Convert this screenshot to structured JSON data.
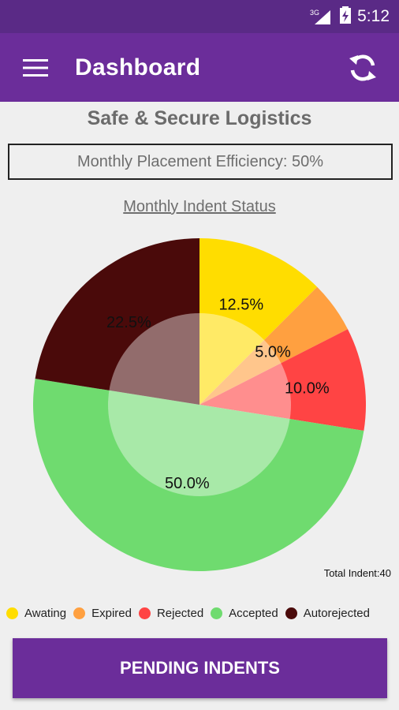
{
  "status_bar": {
    "network": "3G",
    "time": "5:12"
  },
  "app_bar": {
    "title": "Dashboard",
    "menu_icon": "hamburger-menu-icon",
    "refresh_icon": "refresh-icon"
  },
  "company_name": "Safe & Secure Logistics",
  "efficiency_text": "Monthly Placement Efficiency: 50%",
  "indent_title": "Monthly Indent Status",
  "total_indent": "Total Indent:40",
  "pending_button": "PENDING INDENTS",
  "chart_data": {
    "type": "pie",
    "title": "Monthly Indent Status",
    "slices": [
      {
        "name": "Awating",
        "value": 12.5,
        "label": "12.5%",
        "color": "#ffdd00"
      },
      {
        "name": "Expired",
        "value": 5.0,
        "label": "5.0%",
        "color": "#ffa040"
      },
      {
        "name": "Rejected",
        "value": 10.0,
        "label": "10.0%",
        "color": "#ff4444"
      },
      {
        "name": "Accepted",
        "value": 50.0,
        "label": "50.0%",
        "color": "#6fdb6f"
      },
      {
        "name": "Autorejected",
        "value": 22.5,
        "label": "22.5%",
        "color": "#4a0a0a"
      }
    ],
    "legend_position": "bottom"
  }
}
